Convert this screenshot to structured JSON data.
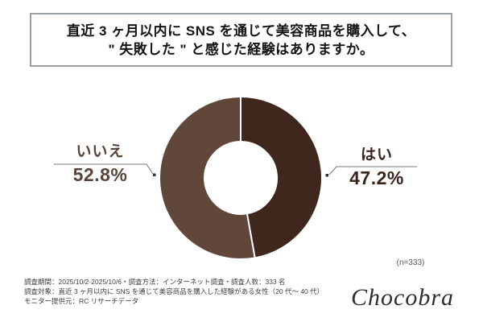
{
  "title": {
    "line1": "直近 3 ヶ月以内に SNS を通じて美容商品を購入して、",
    "line2": "\" 失敗した \" と感じた経験はありますか。"
  },
  "chart_data": {
    "type": "pie",
    "variant": "donut",
    "title": "直近 3 ヶ月以内に SNS を通じて美容商品を購入して、\" 失敗した \" と感じた経験はありますか。",
    "start_angle_deg": 0,
    "direction": "clockwise",
    "inner_radius_ratio": 0.45,
    "sample_size": 333,
    "legend_position": "none",
    "segments": [
      {
        "label": "はい",
        "value": 47.2,
        "display": "47.2%",
        "color": "#40271e"
      },
      {
        "label": "いいえ",
        "value": 52.8,
        "display": "52.8%",
        "color": "#61473a"
      }
    ]
  },
  "callouts": {
    "no": {
      "label": "いいえ",
      "value": "52.8%"
    },
    "yes": {
      "label": "はい",
      "value": "47.2%"
    }
  },
  "sample_note": "(n=333)",
  "footnotes": {
    "line1": "調査期間：2025/10/2-2025/10/6・調査方法：インターネット調査・調査人数：333 名",
    "line2": "調査対象：直近 3 ヶ月以内に SNS を通じて美容商品を購入した経験がある女性（20 代～ 40 代）",
    "line3": "モニター提供元：RC リサーチデータ"
  },
  "logo": "Chocobra",
  "colors": {
    "yes_segment": "#40271e",
    "no_segment": "#61473a",
    "yes_text": "#3b241c",
    "no_text": "#5a4337",
    "title_border": "#99a0a6",
    "leader_line": "#777777",
    "marker_dot": "#333333",
    "footnote_text": "#3d3d3d",
    "sample_note_text": "#595959"
  }
}
